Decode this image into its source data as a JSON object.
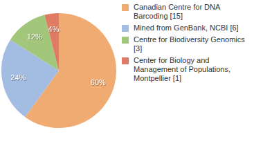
{
  "chart_data": {
    "type": "pie",
    "categories": [
      "Canadian Centre for DNA Barcoding [15]",
      "Mined from GenBank, NCBI [6]",
      "Centre for Biodiversity Genomics [3]",
      "Center for Biology and Management of Populations, Montpellier [1]"
    ],
    "values": [
      60,
      24,
      12,
      4
    ],
    "value_labels": [
      "60%",
      "24%",
      "12%",
      "4%"
    ],
    "colors": [
      "#f0ab72",
      "#a3bde2",
      "#a2c77b",
      "#e07b63"
    ],
    "data_labels": true,
    "legend": "right"
  }
}
